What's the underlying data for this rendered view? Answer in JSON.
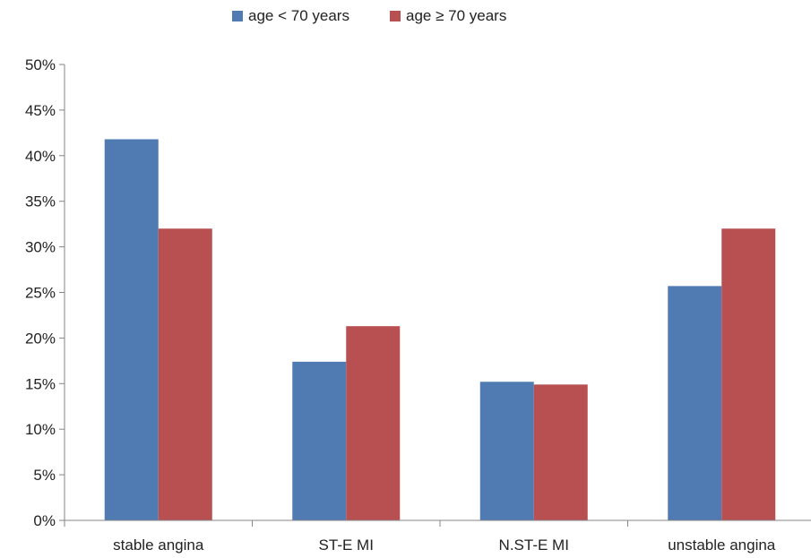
{
  "chart_data": {
    "type": "bar",
    "categories": [
      "stable angina",
      "ST-E MI",
      "N.ST-E MI",
      "unstable angina"
    ],
    "series": [
      {
        "name": "age < 70 years",
        "color": "#4F7BB2",
        "values": [
          41.8,
          17.4,
          15.2,
          25.7
        ]
      },
      {
        "name": "age ≥ 70 years",
        "color": "#B85052",
        "values": [
          32.0,
          21.3,
          14.9,
          32.0
        ]
      }
    ],
    "y_ticks": [
      "0%",
      "5%",
      "10%",
      "15%",
      "20%",
      "25%",
      "30%",
      "35%",
      "40%",
      "45%",
      "50%"
    ],
    "ylim": [
      0,
      50
    ],
    "grid": false,
    "legend_position": "top-center",
    "title": "",
    "xlabel": "",
    "ylabel": ""
  }
}
